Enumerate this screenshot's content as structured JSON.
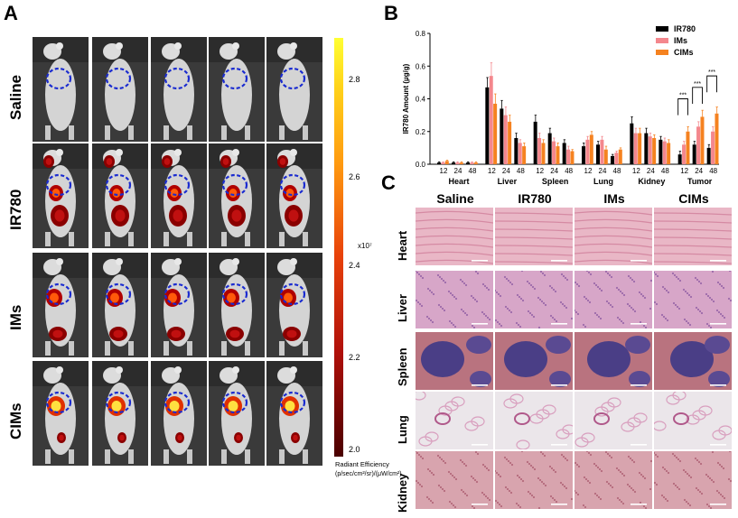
{
  "panels": {
    "a": "A",
    "b": "B",
    "c": "C"
  },
  "panel_a": {
    "groups": [
      "Saline",
      "IR780",
      "IMs",
      "CIMs"
    ],
    "colorbar": {
      "ticks": [
        "2.8",
        "2.6",
        "2.4",
        "2.2",
        "2.0"
      ],
      "exponent": "x10⁷",
      "title": "Radiant Efficiency",
      "units": "(p/sec/cm²/sr)/(μW/cm²)"
    }
  },
  "panel_c": {
    "columns": [
      "Saline",
      "IR780",
      "IMs",
      "CIMs"
    ],
    "rows": [
      "Heart",
      "Liver",
      "Spleen",
      "Lung",
      "Kidney"
    ]
  },
  "chart_data": {
    "type": "bar",
    "ylabel": "IR780 Amount (µg/g)",
    "ylim": [
      0,
      0.8
    ],
    "yticks": [
      "0.0",
      "0.2",
      "0.4",
      "0.6",
      "0.8"
    ],
    "groups": [
      "Heart",
      "Liver",
      "Spleen",
      "Lung",
      "Kidney",
      "Tumor"
    ],
    "timepoints": [
      "12",
      "24",
      "48"
    ],
    "significance": "***",
    "series": [
      {
        "name": "IR780",
        "color": "#000000",
        "values": [
          [
            0.01,
            0.01,
            0.01
          ],
          [
            0.47,
            0.34,
            0.16
          ],
          [
            0.26,
            0.19,
            0.13
          ],
          [
            0.11,
            0.12,
            0.05
          ],
          [
            0.25,
            0.19,
            0.15
          ],
          [
            0.06,
            0.12,
            0.1
          ]
        ],
        "errors": [
          [
            0.005,
            0.005,
            0.005
          ],
          [
            0.06,
            0.05,
            0.03
          ],
          [
            0.04,
            0.03,
            0.02
          ],
          [
            0.02,
            0.02,
            0.01
          ],
          [
            0.04,
            0.03,
            0.02
          ],
          [
            0.02,
            0.02,
            0.02
          ]
        ]
      },
      {
        "name": "IMs",
        "color": "#f4878d",
        "values": [
          [
            0.01,
            0.01,
            0.01
          ],
          [
            0.54,
            0.3,
            0.13
          ],
          [
            0.16,
            0.14,
            0.09
          ],
          [
            0.15,
            0.15,
            0.07
          ],
          [
            0.19,
            0.17,
            0.14
          ],
          [
            0.12,
            0.23,
            0.2
          ]
        ],
        "errors": [
          [
            0.005,
            0.005,
            0.005
          ],
          [
            0.08,
            0.05,
            0.02
          ],
          [
            0.03,
            0.02,
            0.02
          ],
          [
            0.02,
            0.02,
            0.01
          ],
          [
            0.03,
            0.02,
            0.02
          ],
          [
            0.02,
            0.03,
            0.03
          ]
        ]
      },
      {
        "name": "CIMs",
        "color": "#f58220",
        "values": [
          [
            0.02,
            0.01,
            0.01
          ],
          [
            0.37,
            0.26,
            0.11
          ],
          [
            0.13,
            0.11,
            0.08
          ],
          [
            0.18,
            0.09,
            0.09
          ],
          [
            0.19,
            0.16,
            0.13
          ],
          [
            0.2,
            0.29,
            0.31
          ]
        ],
        "errors": [
          [
            0.005,
            0.005,
            0.005
          ],
          [
            0.06,
            0.04,
            0.02
          ],
          [
            0.02,
            0.02,
            0.01
          ],
          [
            0.02,
            0.02,
            0.01
          ],
          [
            0.03,
            0.02,
            0.02
          ],
          [
            0.03,
            0.04,
            0.04
          ]
        ]
      }
    ]
  }
}
